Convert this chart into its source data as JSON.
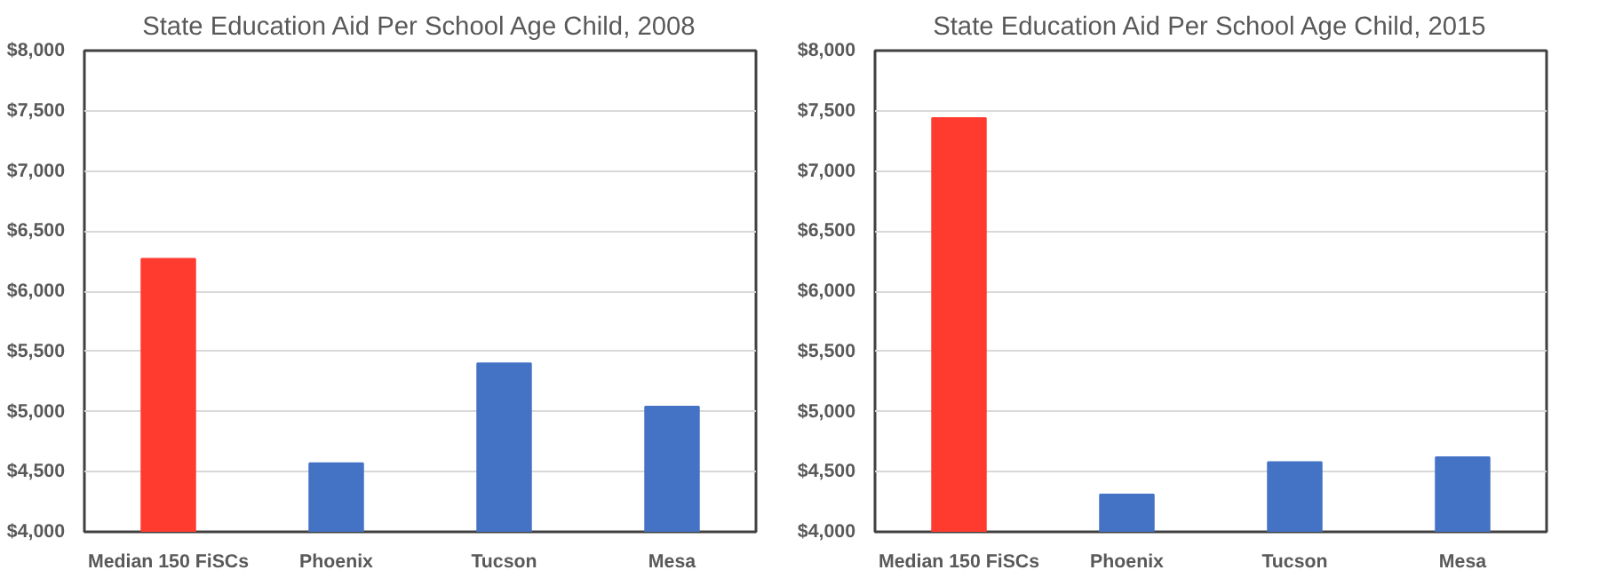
{
  "chart_data": [
    {
      "type": "bar",
      "title": "State Education Aid Per School Age Child, 2008",
      "categories": [
        "Median 150 FiSCs",
        "Phoenix",
        "Tucson",
        "Mesa"
      ],
      "values": [
        6270,
        4570,
        5400,
        5040
      ],
      "colors": [
        "#ff3b2f",
        "#4472c4",
        "#4472c4",
        "#4472c4"
      ],
      "ylim": [
        4000,
        8000
      ],
      "yticks": [
        {
          "value": 4000,
          "label": "$4,000"
        },
        {
          "value": 4500,
          "label": "$4,500"
        },
        {
          "value": 5000,
          "label": "$5,000"
        },
        {
          "value": 5500,
          "label": "$5,500"
        },
        {
          "value": 6000,
          "label": "$6,000"
        },
        {
          "value": 6500,
          "label": "$6,500"
        },
        {
          "value": 7000,
          "label": "$7,000"
        },
        {
          "value": 7500,
          "label": "$7,500"
        },
        {
          "value": 8000,
          "label": "$8,000"
        }
      ],
      "grid": "y"
    },
    {
      "type": "bar",
      "title": "State Education Aid Per School Age Child, 2015",
      "categories": [
        "Median 150 FiSCs",
        "Phoenix",
        "Tucson",
        "Mesa"
      ],
      "values": [
        7440,
        4310,
        4580,
        4620
      ],
      "colors": [
        "#ff3b2f",
        "#4472c4",
        "#4472c4",
        "#4472c4"
      ],
      "ylim": [
        4000,
        8000
      ],
      "yticks": [
        {
          "value": 4000,
          "label": "$4,000"
        },
        {
          "value": 4500,
          "label": "$4,500"
        },
        {
          "value": 5000,
          "label": "$5,000"
        },
        {
          "value": 5500,
          "label": "$5,500"
        },
        {
          "value": 6000,
          "label": "$6,000"
        },
        {
          "value": 6500,
          "label": "$6,500"
        },
        {
          "value": 7000,
          "label": "$7,000"
        },
        {
          "value": 7500,
          "label": "$7,500"
        },
        {
          "value": 8000,
          "label": "$8,000"
        }
      ],
      "grid": "y"
    }
  ]
}
